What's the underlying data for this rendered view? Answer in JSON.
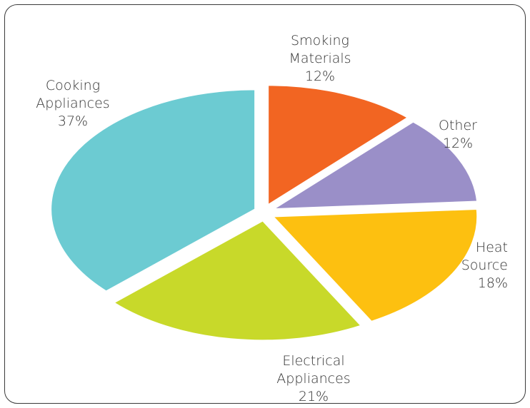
{
  "chart_data": {
    "type": "pie",
    "title": "",
    "slices": [
      {
        "label_lines": [
          "Smoking",
          "Materials"
        ],
        "pct_text": "12%",
        "value": 12,
        "color": "#F26522"
      },
      {
        "label_lines": [
          "Other"
        ],
        "pct_text": "12%",
        "value": 12,
        "color": "#9A8FC8"
      },
      {
        "label_lines": [
          "Heat",
          "Source"
        ],
        "pct_text": "18%",
        "value": 18,
        "color": "#FDC010"
      },
      {
        "label_lines": [
          "Electrical",
          "Appliances"
        ],
        "pct_text": "21%",
        "value": 21,
        "color": "#C8D92A"
      },
      {
        "label_lines": [
          "Cooking",
          "Appliances"
        ],
        "pct_text": "37%",
        "value": 37,
        "color": "#6CCBD2"
      }
    ]
  }
}
